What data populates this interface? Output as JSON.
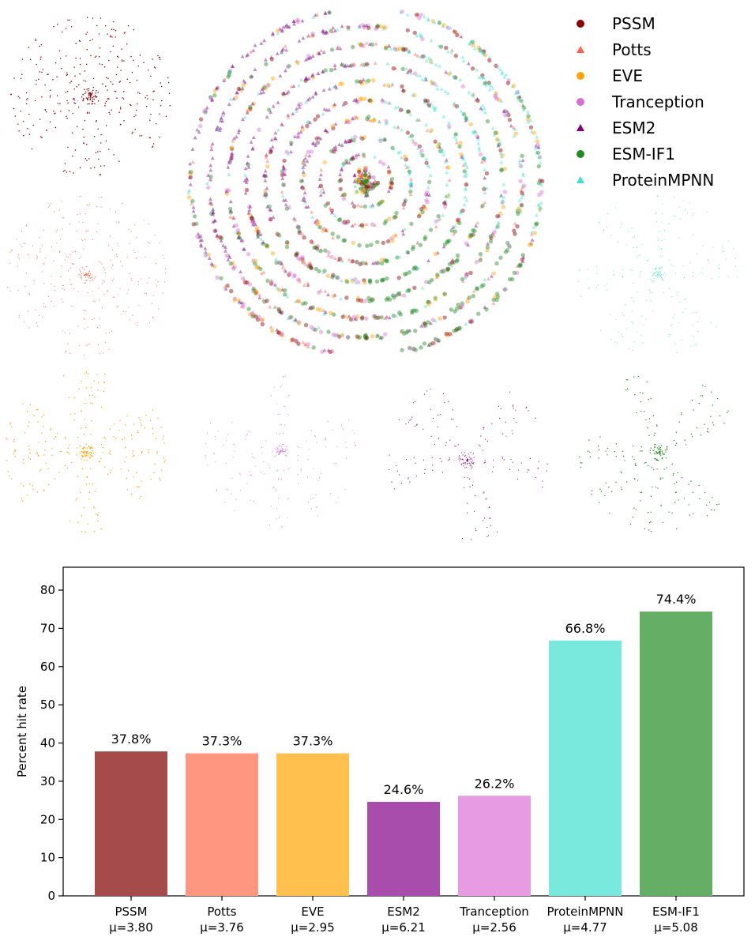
{
  "colors": {
    "PSSM": "#8b0000",
    "Potts": "#ff6347",
    "EVE": "#ffa500",
    "Tranception": "#da70d6",
    "ESM2": "#800080",
    "ESM-IF1": "#228b22",
    "ProteinMPNN": "#40e0d0"
  },
  "chart_data": [
    {
      "type": "scatter",
      "legend_position": "top-right",
      "legend": [
        {
          "name": "PSSM",
          "marker": "circle",
          "color": "#8b0000"
        },
        {
          "name": "Potts",
          "marker": "triangle",
          "color": "#ff6347"
        },
        {
          "name": "EVE",
          "marker": "circle",
          "color": "#ffa500"
        },
        {
          "name": "Tranception",
          "marker": "circle",
          "color": "#da70d6"
        },
        {
          "name": "ESM2",
          "marker": "triangle",
          "color": "#800080"
        },
        {
          "name": "ESM-IF1",
          "marker": "circle",
          "color": "#228b22"
        },
        {
          "name": "ProteinMPNN",
          "marker": "triangle",
          "color": "#40e0d0"
        }
      ],
      "axes": "off",
      "description": "Radial embedding scatter: one combined panel plus one panel per method"
    },
    {
      "type": "bar",
      "categories": [
        "PSSM",
        "Potts",
        "EVE",
        "ESM2",
        "Tranception",
        "ProteinMPNN",
        "ESM-IF1"
      ],
      "sublabels": [
        "μ=3.80",
        "μ=3.76",
        "μ=2.95",
        "μ=6.21",
        "μ=2.56",
        "μ=4.77",
        "μ=5.08"
      ],
      "values": [
        37.8,
        37.3,
        37.3,
        24.6,
        26.2,
        66.8,
        74.4
      ],
      "value_labels": [
        "37.8%",
        "37.3%",
        "37.3%",
        "24.6%",
        "26.2%",
        "66.8%",
        "74.4%"
      ],
      "bar_colors": [
        "#a54b4b",
        "#ff9680",
        "#ffc04d",
        "#a84dab",
        "#e69be3",
        "#79e8dd",
        "#65ae65"
      ],
      "title": "",
      "xlabel": "",
      "ylabel": "Percent hit rate",
      "ylim": [
        0,
        86
      ],
      "yticks": [
        0,
        10,
        20,
        30,
        40,
        50,
        60,
        70,
        80
      ],
      "grid": false
    }
  ]
}
